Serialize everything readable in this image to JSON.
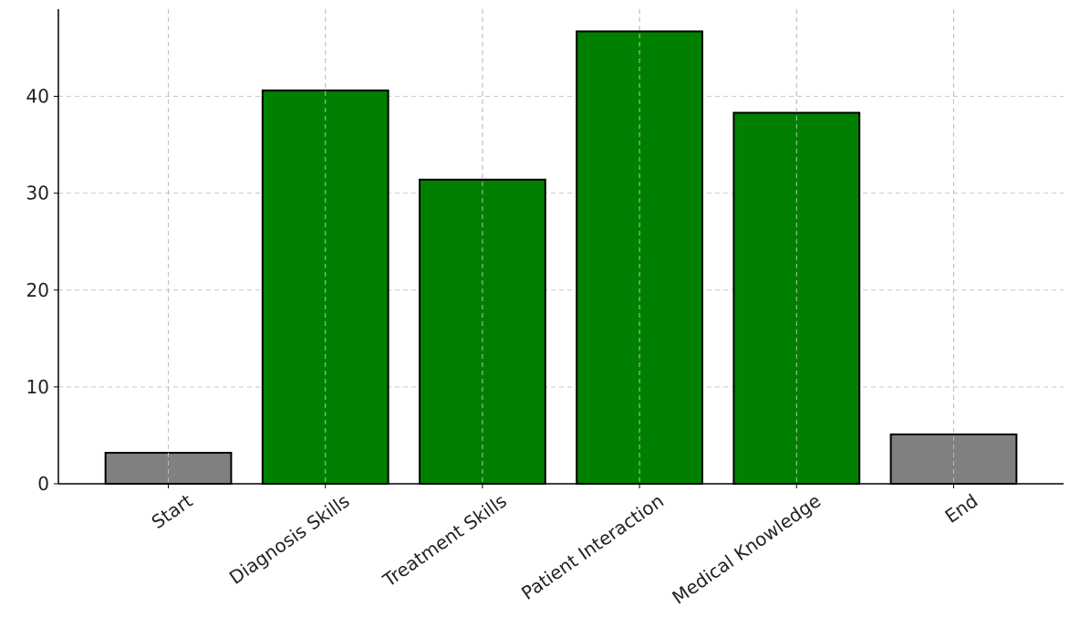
{
  "chart_data": {
    "type": "bar",
    "categories": [
      "Start",
      "Diagnosis Skills",
      "Treatment Skills",
      "Patient Interaction",
      "Medical Knowledge",
      "End"
    ],
    "values": [
      3.2,
      40.6,
      31.4,
      46.7,
      38.3,
      5.1
    ],
    "bar_colors": [
      "#808080",
      "#008000",
      "#008000",
      "#008000",
      "#008000",
      "#808080"
    ],
    "edge_color": "#000000",
    "yticks": [
      0,
      10,
      20,
      30,
      40
    ],
    "ylim": [
      0,
      49
    ],
    "grid": true,
    "title": "",
    "xlabel": "",
    "ylabel": ""
  }
}
